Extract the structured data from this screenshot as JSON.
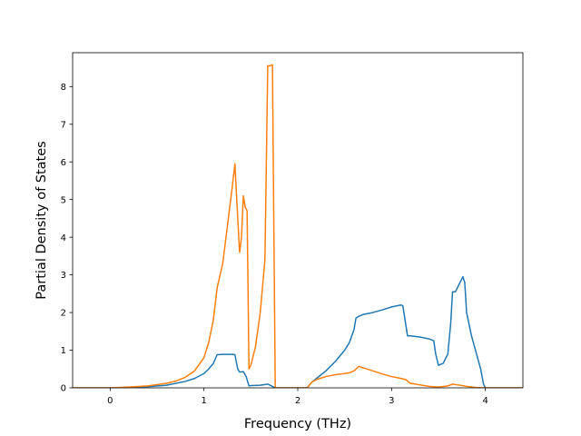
{
  "chart_data": {
    "type": "line",
    "title": "",
    "xlabel": "Frequency (THz)",
    "ylabel": "Partial Density of States",
    "xlim": [
      -0.4,
      4.4
    ],
    "ylim": [
      0,
      8.9
    ],
    "xticks": [
      0,
      1,
      2,
      3,
      4
    ],
    "yticks": [
      0,
      1,
      2,
      3,
      4,
      5,
      6,
      7,
      8
    ],
    "xtick_labels": [
      "0",
      "1",
      "2",
      "3",
      "4"
    ],
    "ytick_labels": [
      "0",
      "1",
      "2",
      "3",
      "4",
      "5",
      "6",
      "7",
      "8"
    ],
    "grid": false,
    "legend": "none",
    "series": [
      {
        "color": "#1f77b4",
        "x": [
          -0.4,
          0.0,
          0.2,
          0.4,
          0.6,
          0.8,
          0.9,
          1.0,
          1.05,
          1.1,
          1.14,
          1.2,
          1.3,
          1.33,
          1.36,
          1.38,
          1.42,
          1.45,
          1.48,
          1.5,
          1.6,
          1.68,
          1.72,
          1.76,
          2.1,
          2.15,
          2.2,
          2.3,
          2.4,
          2.5,
          2.55,
          2.6,
          2.62,
          2.65,
          2.7,
          2.8,
          2.9,
          3.0,
          3.1,
          3.12,
          3.15,
          3.17,
          3.2,
          3.3,
          3.4,
          3.45,
          3.47,
          3.5,
          3.55,
          3.6,
          3.63,
          3.65,
          3.68,
          3.7,
          3.73,
          3.76,
          3.78,
          3.8,
          3.85,
          3.9,
          3.95,
          3.98,
          4.0,
          4.4
        ],
        "y": [
          0,
          0,
          0.01,
          0.03,
          0.07,
          0.17,
          0.25,
          0.38,
          0.5,
          0.65,
          0.88,
          0.89,
          0.89,
          0.88,
          0.5,
          0.42,
          0.43,
          0.3,
          0.05,
          0.06,
          0.07,
          0.1,
          0.05,
          0.0,
          0.0,
          0.15,
          0.25,
          0.45,
          0.7,
          1.0,
          1.2,
          1.55,
          1.85,
          1.9,
          1.95,
          2.0,
          2.07,
          2.15,
          2.2,
          2.18,
          1.7,
          1.38,
          1.38,
          1.35,
          1.3,
          1.25,
          0.9,
          0.6,
          0.65,
          0.9,
          1.7,
          2.55,
          2.55,
          2.65,
          2.8,
          2.95,
          2.8,
          2.0,
          1.4,
          0.95,
          0.5,
          0.1,
          0.0,
          0.0
        ]
      },
      {
        "color": "#ff7f0e",
        "x": [
          -0.4,
          0.0,
          0.2,
          0.4,
          0.6,
          0.7,
          0.8,
          0.9,
          1.0,
          1.05,
          1.1,
          1.14,
          1.2,
          1.25,
          1.3,
          1.33,
          1.36,
          1.38,
          1.4,
          1.42,
          1.44,
          1.46,
          1.48,
          1.5,
          1.55,
          1.6,
          1.65,
          1.68,
          1.7,
          1.73,
          1.76,
          1.8,
          2.1,
          2.15,
          2.2,
          2.3,
          2.4,
          2.5,
          2.55,
          2.6,
          2.62,
          2.65,
          2.7,
          2.8,
          2.9,
          3.0,
          3.1,
          3.15,
          3.2,
          3.3,
          3.4,
          3.5,
          3.6,
          3.65,
          3.7,
          3.8,
          3.9,
          4.0,
          4.4
        ],
        "y": [
          0,
          0,
          0.02,
          0.05,
          0.12,
          0.18,
          0.28,
          0.45,
          0.8,
          1.2,
          1.8,
          2.65,
          3.3,
          4.3,
          5.3,
          5.95,
          4.5,
          3.6,
          4.0,
          5.1,
          4.8,
          4.7,
          0.5,
          0.6,
          1.1,
          2.0,
          3.4,
          8.55,
          8.55,
          8.58,
          0.0,
          0.0,
          0.0,
          0.15,
          0.22,
          0.3,
          0.35,
          0.38,
          0.4,
          0.45,
          0.5,
          0.57,
          0.53,
          0.45,
          0.37,
          0.3,
          0.25,
          0.22,
          0.12,
          0.08,
          0.04,
          0.02,
          0.05,
          0.1,
          0.08,
          0.04,
          0.01,
          0.0,
          0.0
        ]
      }
    ]
  }
}
